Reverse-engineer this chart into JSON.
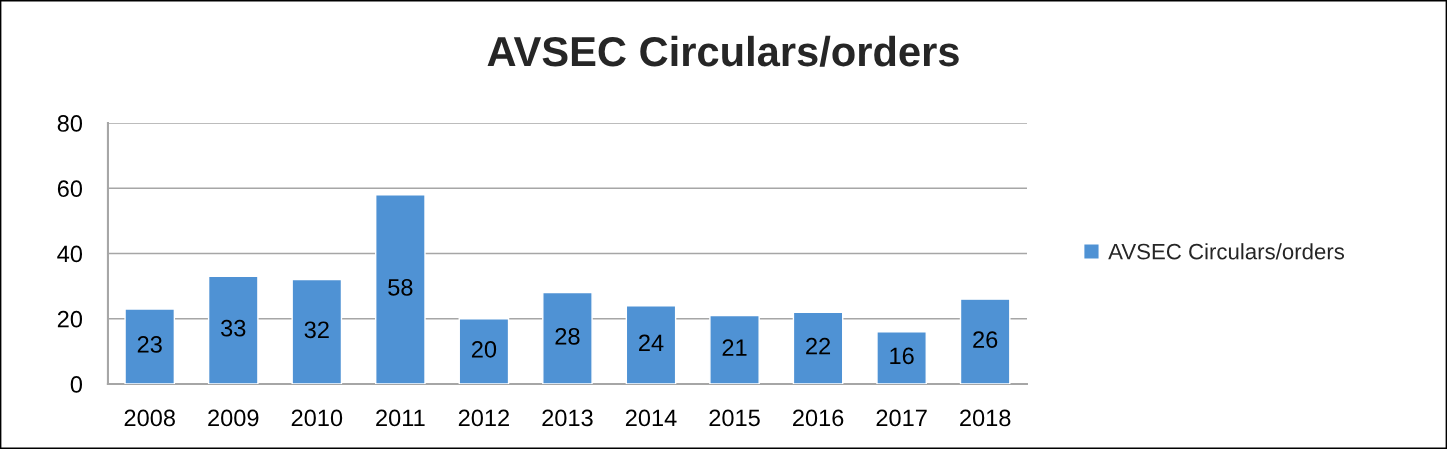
{
  "chart_data": {
    "type": "bar",
    "title": "AVSEC Circulars/orders",
    "categories": [
      "2008",
      "2009",
      "2010",
      "2011",
      "2012",
      "2013",
      "2014",
      "2015",
      "2016",
      "2017",
      "2018"
    ],
    "series": [
      {
        "name": "AVSEC Circulars/orders",
        "color": "#4f92d4",
        "values": [
          23,
          33,
          32,
          58,
          20,
          28,
          24,
          21,
          22,
          16,
          26
        ]
      }
    ],
    "ylim": [
      0,
      80
    ],
    "yticks": [
      0,
      20,
      40,
      60,
      80
    ],
    "grid": "y",
    "legend": "right",
    "data_labels": true
  }
}
